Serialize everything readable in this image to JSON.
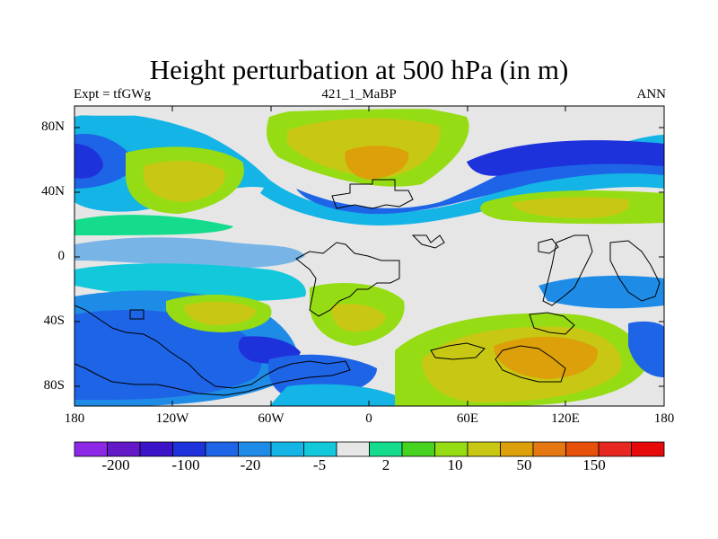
{
  "map": {
    "title": "Height perturbation at 500 hPa (in m)",
    "left_string": "Expt = tfGWg",
    "center_string": "421_1_MaBP",
    "right_string": "ANN",
    "y_ticks": [
      "80N",
      "40N",
      "0",
      "40S",
      "80S"
    ],
    "x_ticks": [
      "180",
      "120W",
      "60W",
      "0",
      "60E",
      "120E",
      "180"
    ]
  },
  "colorbar": {
    "colors": [
      "#8c28e6",
      "#6419c8",
      "#3c14c8",
      "#1e32dc",
      "#1e64e6",
      "#1e8ce6",
      "#14b4e6",
      "#14c8dc",
      "#e6e6e6",
      "#14dc8c",
      "#46d21e",
      "#96dc14",
      "#c8c814",
      "#dca00a",
      "#e67814",
      "#e6500a",
      "#e62820",
      "#e60a0a"
    ],
    "labels": [
      "-200",
      "-100",
      "-20",
      "-5",
      "2",
      "10",
      "50",
      "150"
    ]
  }
}
